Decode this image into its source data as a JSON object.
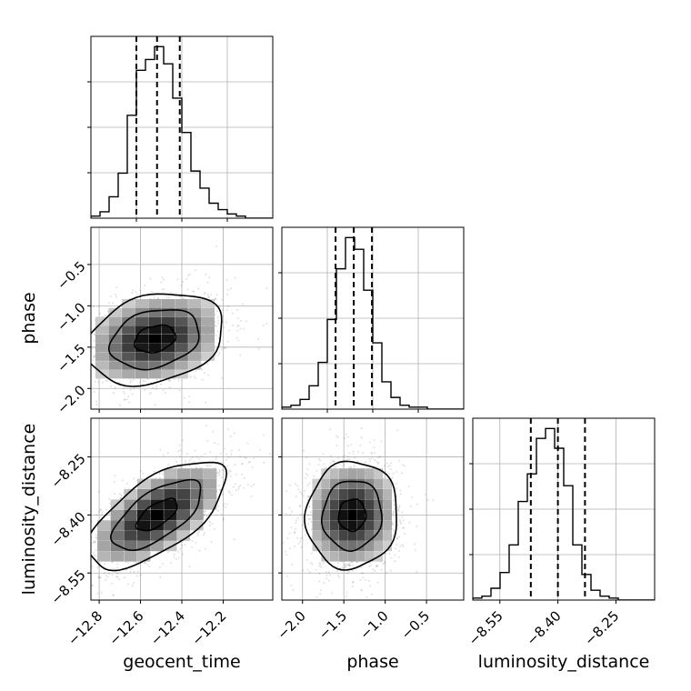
{
  "chart_data": {
    "type": "corner",
    "parameters": [
      "geocent_time",
      "phase",
      "luminosity_distance"
    ],
    "panels": [
      {
        "name": "geocent_time-histogram",
        "type": "histogram",
        "param": "geocent_time",
        "xlim": [
          -12.84,
          -11.96
        ],
        "bins_left": -12.84,
        "bin_width": 0.044,
        "counts": [
          1,
          3,
          10,
          21,
          48,
          69,
          74,
          80,
          72,
          56,
          40,
          22,
          14,
          7,
          4,
          2,
          1,
          0,
          0,
          0
        ],
        "quantiles": [
          -12.62,
          -12.52,
          -12.41
        ],
        "grid": true
      },
      {
        "name": "phase-vs-geocent_time",
        "type": "scatter-contour",
        "x_param": "geocent_time",
        "y_param": "phase",
        "xlim": [
          -12.84,
          -11.96
        ],
        "ylim": [
          -2.25,
          -0.05
        ],
        "center": [
          -12.53,
          -1.4
        ],
        "spread": [
          0.18,
          0.3
        ],
        "correlation": 0.25,
        "x_ticks": [
          "−12.8",
          "−12.6",
          "−12.4",
          "−12.2"
        ],
        "x_tick_values": [
          -12.8,
          -12.6,
          -12.4,
          -12.2
        ],
        "y_ticks": [
          "−0.5",
          "−1.0",
          "−1.5",
          "−2.0"
        ],
        "y_tick_values": [
          -0.5,
          -1.0,
          -1.5,
          -2.0
        ],
        "grid": true
      },
      {
        "name": "phase-histogram",
        "type": "histogram",
        "param": "phase",
        "xlim": [
          -2.25,
          -0.05
        ],
        "bins_left": -2.25,
        "bin_width": 0.11,
        "counts": [
          1,
          2,
          5,
          12,
          24,
          46,
          72,
          88,
          82,
          61,
          34,
          14,
          6,
          2,
          1,
          1,
          0,
          0,
          0,
          0
        ],
        "quantiles": [
          -1.6,
          -1.38,
          -1.16
        ],
        "grid": true
      },
      {
        "name": "luminosity_distance-vs-geocent_time",
        "type": "scatter-contour",
        "x_param": "geocent_time",
        "y_param": "luminosity_distance",
        "xlim": [
          -12.84,
          -11.96
        ],
        "ylim": [
          -8.62,
          -8.15
        ],
        "center": [
          -12.52,
          -8.4
        ],
        "spread": [
          0.18,
          0.075
        ],
        "correlation": 0.65,
        "x_ticks": [
          "−12.8",
          "−12.6",
          "−12.4",
          "−12.2"
        ],
        "x_tick_values": [
          -12.8,
          -12.6,
          -12.4,
          -12.2
        ],
        "y_ticks": [
          "−8.25",
          "−8.40",
          "−8.55"
        ],
        "y_tick_values": [
          -8.25,
          -8.4,
          -8.55
        ],
        "grid": true
      },
      {
        "name": "luminosity_distance-vs-phase",
        "type": "scatter-contour",
        "x_param": "phase",
        "y_param": "luminosity_distance",
        "xlim": [
          -2.25,
          -0.05
        ],
        "ylim": [
          -8.62,
          -8.15
        ],
        "center": [
          -1.4,
          -8.4
        ],
        "spread": [
          0.3,
          0.075
        ],
        "correlation": 0.05,
        "x_ticks": [
          "−2.0",
          "−1.5",
          "−1.0",
          "−0.5"
        ],
        "x_tick_values": [
          -2.0,
          -1.5,
          -1.0,
          -0.5
        ],
        "grid": true
      },
      {
        "name": "luminosity_distance-histogram",
        "type": "histogram",
        "param": "luminosity_distance",
        "xlim": [
          -8.62,
          -8.15
        ],
        "bins_left": -8.62,
        "bin_width": 0.0235,
        "counts": [
          1,
          2,
          6,
          14,
          28,
          50,
          64,
          82,
          87,
          77,
          58,
          28,
          13,
          5,
          2,
          1,
          0,
          0,
          0,
          0
        ],
        "quantiles": [
          -8.47,
          -8.4,
          -8.33
        ],
        "x_ticks": [
          "−8.55",
          "−8.40",
          "−8.25"
        ],
        "x_tick_values": [
          -8.55,
          -8.4,
          -8.25
        ],
        "grid": true
      }
    ],
    "axis_labels": {
      "x": [
        "geocent_time",
        "phase",
        "luminosity_distance"
      ],
      "y": [
        "phase",
        "luminosity_distance"
      ]
    }
  }
}
